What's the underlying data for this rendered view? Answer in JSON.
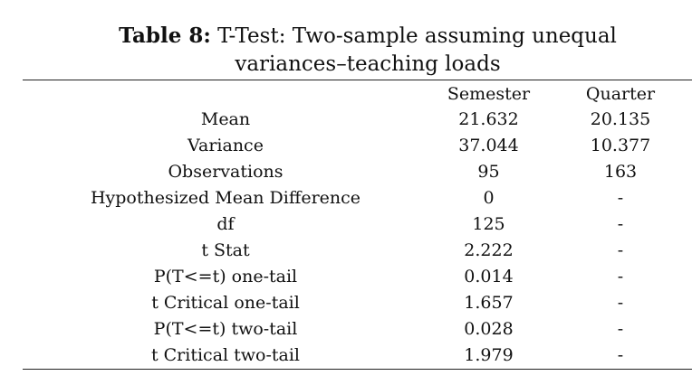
{
  "caption": {
    "label": "Table 8:",
    "line1": "T-Test: Two-sample assuming unequal",
    "line2": "variances–teaching loads"
  },
  "table": {
    "columns": [
      "",
      "Semester",
      "Quarter"
    ],
    "rows": [
      {
        "label": "Mean",
        "semester": "21.632",
        "quarter": "20.135"
      },
      {
        "label": "Variance",
        "semester": "37.044",
        "quarter": "10.377"
      },
      {
        "label": "Observations",
        "semester": "95",
        "quarter": "163"
      },
      {
        "label": "Hypothesized Mean Difference",
        "semester": "0",
        "quarter": "-"
      },
      {
        "label": "df",
        "semester": "125",
        "quarter": "-"
      },
      {
        "label": "t Stat",
        "semester": "2.222",
        "quarter": "-"
      },
      {
        "label": "P(T<=t) one-tail",
        "semester": "0.014",
        "quarter": "-"
      },
      {
        "label": "t Critical one-tail",
        "semester": "1.657",
        "quarter": "-"
      },
      {
        "label": "P(T<=t) two-tail",
        "semester": "0.028",
        "quarter": "-"
      },
      {
        "label": "t Critical two-tail",
        "semester": "1.979",
        "quarter": "-"
      }
    ]
  }
}
